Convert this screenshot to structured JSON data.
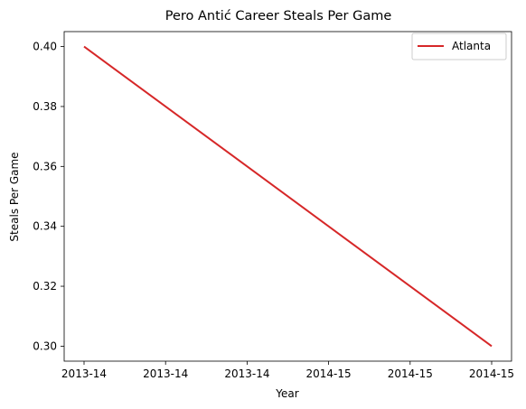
{
  "chart_data": {
    "type": "line",
    "title": "Pero Antić Career Steals Per Game",
    "xlabel": "Year",
    "ylabel": "Steals Per Game",
    "x_tick_labels": [
      "2013-14",
      "2013-14",
      "2013-14",
      "2014-15",
      "2014-15",
      "2014-15"
    ],
    "y_ticks": [
      0.3,
      0.32,
      0.34,
      0.36,
      0.38,
      0.4
    ],
    "y_tick_labels": [
      "0.30",
      "0.32",
      "0.34",
      "0.36",
      "0.38",
      "0.40"
    ],
    "ylim": [
      0.295,
      0.405
    ],
    "grid": false,
    "legend_position": "top-right",
    "series": [
      {
        "name": "Atlanta",
        "color": "#d62728",
        "x": [
          "2013-14",
          "2014-15"
        ],
        "values": [
          0.4,
          0.3
        ]
      }
    ]
  }
}
